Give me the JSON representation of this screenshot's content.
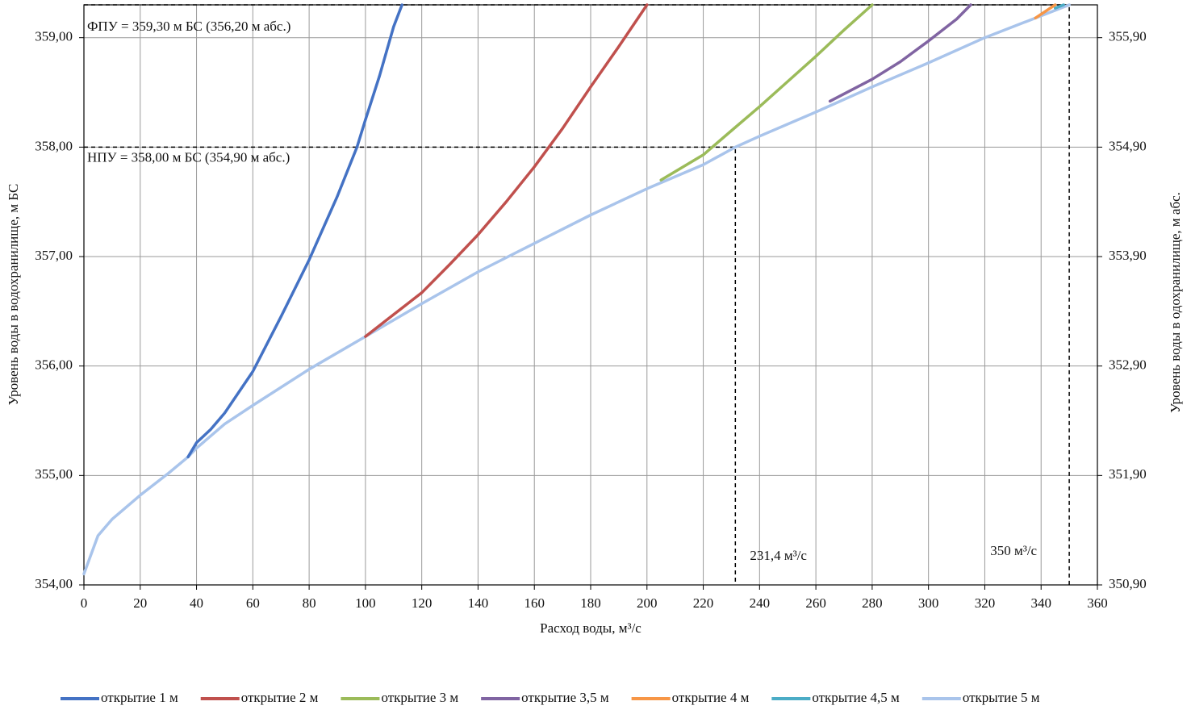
{
  "chart_data": {
    "type": "line",
    "x_label": "Расход воды, м³/с",
    "y_label": "Уровень воды в водохранилище,  м БС",
    "y2_label": "Уровень воды в одохранилище, м абс.",
    "xlim": [
      0,
      360
    ],
    "xticks": [
      0,
      20,
      40,
      60,
      80,
      100,
      120,
      140,
      160,
      180,
      200,
      220,
      240,
      260,
      280,
      300,
      320,
      340,
      360
    ],
    "ylim": [
      354,
      359.3
    ],
    "yticks": [
      {
        "value": 354,
        "label": "354,00"
      },
      {
        "value": 355,
        "label": "355,00"
      },
      {
        "value": 356,
        "label": "356,00"
      },
      {
        "value": 357,
        "label": "357,00"
      },
      {
        "value": 358,
        "label": "358,00"
      },
      {
        "value": 359,
        "label": "359,00"
      }
    ],
    "y2lim": [
      350.9,
      356.2
    ],
    "y2ticks": [
      {
        "value": 350.9,
        "label": "350,90"
      },
      {
        "value": 351.9,
        "label": "351,90"
      },
      {
        "value": 352.9,
        "label": "352,90"
      },
      {
        "value": 353.9,
        "label": "353,90"
      },
      {
        "value": 354.9,
        "label": "354,90"
      },
      {
        "value": 355.9,
        "label": "355,90"
      }
    ],
    "grid": true,
    "series": [
      {
        "name": "открытие 1 м",
        "color": "#4472c4",
        "x": [
          37,
          40,
          45,
          50,
          60,
          70,
          80,
          90,
          97,
          100,
          105,
          110,
          113
        ],
        "values": [
          355.17,
          355.3,
          355.42,
          355.57,
          355.95,
          356.45,
          356.97,
          357.55,
          358.0,
          358.25,
          358.65,
          359.1,
          359.3
        ]
      },
      {
        "name": "открытие 2 м",
        "color": "#c0504d",
        "x": [
          100,
          110,
          120,
          130,
          140,
          150,
          160,
          170,
          180,
          190,
          200
        ],
        "values": [
          356.27,
          356.47,
          356.67,
          356.93,
          357.2,
          357.5,
          357.82,
          358.17,
          358.55,
          358.92,
          359.3
        ]
      },
      {
        "name": "открытие 3 м",
        "color": "#9bbb59",
        "x": [
          205,
          220,
          230,
          240,
          250,
          260,
          270,
          280
        ],
        "values": [
          357.7,
          357.93,
          358.15,
          358.37,
          358.6,
          358.83,
          359.07,
          359.3
        ]
      },
      {
        "name": "открытие 3,5 м",
        "color": "#8064a2",
        "x": [
          265,
          280,
          290,
          300,
          310,
          315
        ],
        "values": [
          358.42,
          358.62,
          358.78,
          358.97,
          359.17,
          359.3
        ]
      },
      {
        "name": "открытие 4 м",
        "color": "#f79646",
        "x": [
          338,
          345
        ],
        "values": [
          359.18,
          359.3
        ]
      },
      {
        "name": "открытие 4,5 м",
        "color": "#4bacc6",
        "x": [
          345,
          348
        ],
        "values": [
          359.27,
          359.3
        ]
      },
      {
        "name": "открытие 5 м",
        "color": "#a9c4eb",
        "x": [
          0,
          5,
          10,
          20,
          30,
          37,
          40,
          50,
          60,
          80,
          100,
          120,
          140,
          160,
          180,
          200,
          220,
          231.4,
          240,
          260,
          280,
          300,
          320,
          340,
          350
        ],
        "values": [
          354.1,
          354.45,
          354.6,
          354.82,
          355.02,
          355.17,
          355.25,
          355.47,
          355.64,
          355.97,
          356.27,
          356.57,
          356.86,
          357.12,
          357.38,
          357.62,
          357.84,
          358.0,
          358.1,
          358.32,
          358.55,
          358.77,
          359.0,
          359.2,
          359.3
        ]
      }
    ],
    "reference_points": [
      {
        "x": 231.4,
        "y": 358
      },
      {
        "x": 350,
        "y": 359.3
      }
    ],
    "annotations": [
      "ФПУ = 359,30 м БС (356,20 м абс.)",
      "НПУ = 358,00 м БС (354,90 м абс.)",
      "231,4 м³/с",
      "350 м³/с"
    ]
  }
}
